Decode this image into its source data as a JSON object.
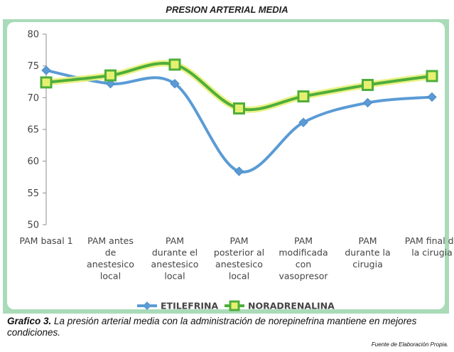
{
  "header": {
    "title": "PRESION ARTERIAL MEDIA"
  },
  "chart_data": {
    "type": "line",
    "categories": [
      [
        "PAM basal 1"
      ],
      [
        "PAM antes",
        "de",
        "anestesico",
        "local"
      ],
      [
        "PAM",
        "durante el",
        "anestesico",
        "local"
      ],
      [
        "PAM",
        "posterior al",
        "anestesico",
        "local"
      ],
      [
        "PAM",
        "modificada",
        "con",
        "vasopresor"
      ],
      [
        "PAM",
        "durante la",
        "cirugia"
      ],
      [
        "PAM final de",
        "la cirugia"
      ]
    ],
    "series": [
      {
        "name": "ETILEFRINA",
        "values": [
          74.3,
          72.2,
          72.2,
          58.4,
          66.1,
          69.2,
          70.1
        ],
        "color": "#5b9bd5",
        "marker": "diamond"
      },
      {
        "name": "NORADRENALINA",
        "values": [
          72.4,
          73.5,
          75.2,
          68.3,
          70.2,
          72.0,
          73.4
        ],
        "color": "#4eae3b",
        "marker": "square"
      }
    ],
    "ylim": [
      50,
      80
    ],
    "yticks": [
      50,
      55,
      60,
      65,
      70,
      75,
      80
    ],
    "grid": false,
    "legend": "bottom",
    "smooth": true
  },
  "caption": {
    "label": "Grafico 3.",
    "text": " La presión arterial media con la administración de norepinefrina mantiene en mejores condiciones."
  },
  "source": "Fuente de Elaboración Propia."
}
